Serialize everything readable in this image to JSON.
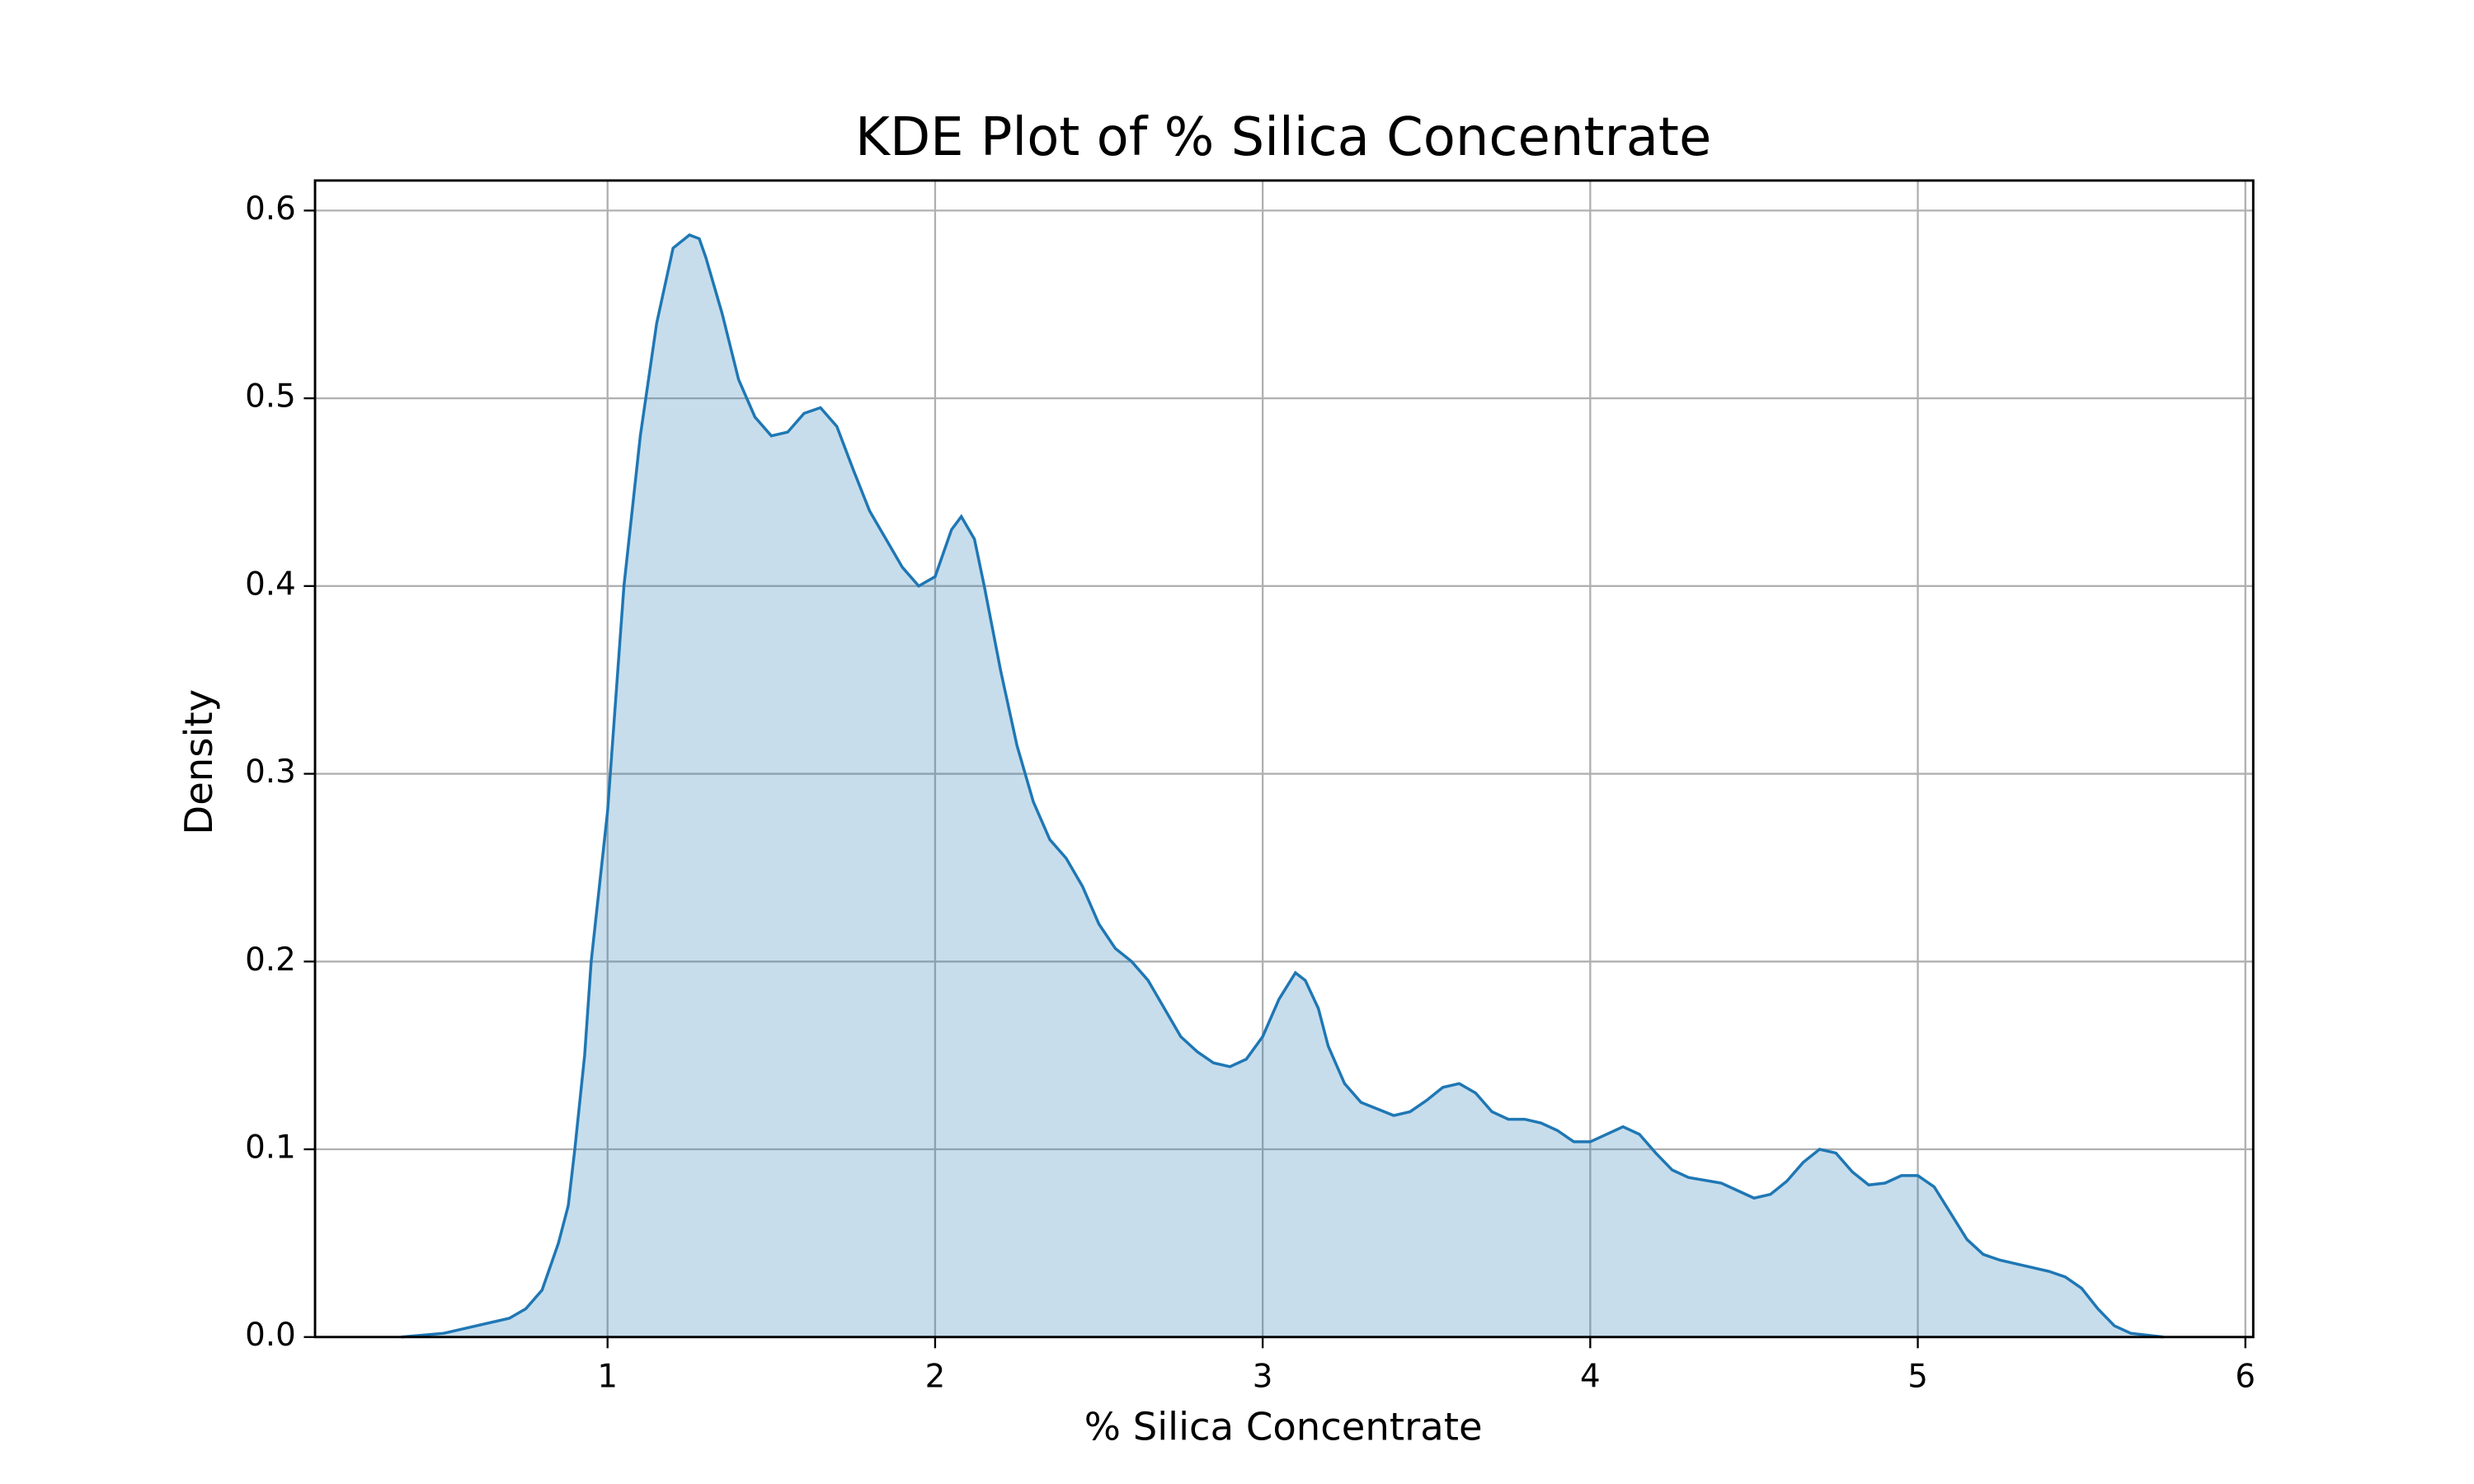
{
  "chart_data": {
    "type": "kde",
    "title": "KDE Plot of % Silica Concentrate",
    "xlabel": "% Silica Concentrate",
    "ylabel": "Density",
    "color": "#1f77b4",
    "grid": true,
    "xlim": [
      0.107,
      6.024
    ],
    "ylim": [
      0,
      0.616
    ],
    "xticks": [
      1,
      2,
      3,
      4,
      5,
      6
    ],
    "yticks": [
      {
        "value": 0,
        "label": "0.0"
      },
      0.1,
      0.2,
      0.3,
      0.4,
      0.5,
      0.6
    ],
    "x": [
      0.37,
      0.5,
      0.6,
      0.7,
      0.75,
      0.8,
      0.85,
      0.88,
      0.9,
      0.93,
      0.95,
      1.0,
      1.05,
      1.1,
      1.15,
      1.2,
      1.25,
      1.28,
      1.3,
      1.35,
      1.4,
      1.45,
      1.5,
      1.55,
      1.6,
      1.65,
      1.7,
      1.75,
      1.8,
      1.85,
      1.9,
      1.95,
      2.0,
      2.05,
      2.08,
      2.12,
      2.15,
      2.2,
      2.25,
      2.3,
      2.35,
      2.4,
      2.45,
      2.5,
      2.55,
      2.6,
      2.65,
      2.7,
      2.75,
      2.8,
      2.85,
      2.9,
      2.95,
      3.0,
      3.05,
      3.1,
      3.13,
      3.17,
      3.2,
      3.25,
      3.3,
      3.4,
      3.45,
      3.5,
      3.55,
      3.6,
      3.65,
      3.7,
      3.75,
      3.8,
      3.85,
      3.9,
      3.95,
      4.0,
      4.05,
      4.1,
      4.15,
      4.2,
      4.25,
      4.3,
      4.4,
      4.45,
      4.5,
      4.55,
      4.6,
      4.65,
      4.7,
      4.75,
      4.8,
      4.85,
      4.9,
      4.95,
      5.0,
      5.05,
      5.1,
      5.15,
      5.2,
      5.25,
      5.3,
      5.4,
      5.45,
      5.5,
      5.55,
      5.6,
      5.65,
      5.75
    ],
    "values": [
      0.0,
      0.002,
      0.006,
      0.01,
      0.015,
      0.025,
      0.05,
      0.07,
      0.1,
      0.15,
      0.2,
      0.28,
      0.4,
      0.48,
      0.54,
      0.58,
      0.587,
      0.585,
      0.575,
      0.545,
      0.51,
      0.49,
      0.48,
      0.482,
      0.492,
      0.495,
      0.485,
      0.462,
      0.44,
      0.425,
      0.41,
      0.4,
      0.405,
      0.43,
      0.437,
      0.425,
      0.4,
      0.355,
      0.315,
      0.285,
      0.265,
      0.255,
      0.24,
      0.22,
      0.207,
      0.2,
      0.19,
      0.175,
      0.16,
      0.152,
      0.146,
      0.144,
      0.148,
      0.16,
      0.18,
      0.194,
      0.19,
      0.175,
      0.155,
      0.135,
      0.125,
      0.118,
      0.12,
      0.126,
      0.133,
      0.135,
      0.13,
      0.12,
      0.116,
      0.116,
      0.114,
      0.11,
      0.104,
      0.104,
      0.108,
      0.112,
      0.108,
      0.098,
      0.089,
      0.085,
      0.082,
      0.078,
      0.074,
      0.076,
      0.083,
      0.093,
      0.1,
      0.098,
      0.088,
      0.081,
      0.082,
      0.086,
      0.086,
      0.08,
      0.066,
      0.052,
      0.044,
      0.041,
      0.039,
      0.035,
      0.032,
      0.026,
      0.015,
      0.006,
      0.002,
      0.0
    ]
  }
}
